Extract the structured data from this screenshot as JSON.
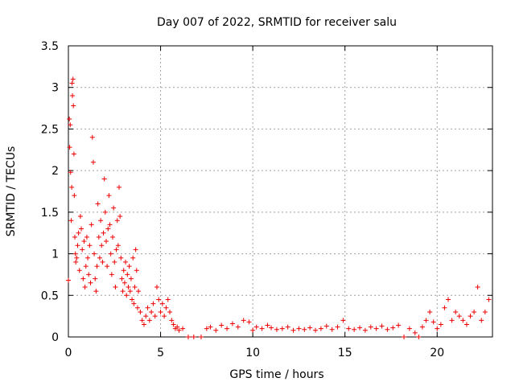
{
  "chart_data": {
    "type": "scatter",
    "title": "Day 007 of 2022, SRMTID for receiver salu",
    "xlabel": "GPS time / hours",
    "ylabel": "SRMTID / TECUs",
    "xlim": [
      0,
      23
    ],
    "ylim": [
      0,
      3.5
    ],
    "xticks": [
      0,
      5,
      10,
      15,
      20
    ],
    "xtick_labels": [
      "0",
      "5",
      "10",
      "15",
      "20"
    ],
    "yticks": [
      0,
      0.5,
      1,
      1.5,
      2,
      2.5,
      3,
      3.5
    ],
    "ytick_labels": [
      "0",
      "0.5",
      "1",
      "1.5",
      "2",
      "2.5",
      "3",
      "3.5"
    ],
    "grid": true,
    "marker": "+",
    "marker_color": "#ee0000",
    "series": [
      {
        "name": "SRMTID",
        "points": [
          [
            0.0,
            0.68
          ],
          [
            0.05,
            2.62
          ],
          [
            0.07,
            2.28
          ],
          [
            0.1,
            2.55
          ],
          [
            0.12,
            1.98
          ],
          [
            0.15,
            1.4
          ],
          [
            0.18,
            1.8
          ],
          [
            0.2,
            3.05
          ],
          [
            0.22,
            2.9
          ],
          [
            0.25,
            3.1
          ],
          [
            0.27,
            2.78
          ],
          [
            0.3,
            2.2
          ],
          [
            0.32,
            1.7
          ],
          [
            0.35,
            1.2
          ],
          [
            0.38,
            1.0
          ],
          [
            0.4,
            0.9
          ],
          [
            0.45,
            0.95
          ],
          [
            0.5,
            1.1
          ],
          [
            0.55,
            1.25
          ],
          [
            0.6,
            0.8
          ],
          [
            0.65,
            1.45
          ],
          [
            0.7,
            1.3
          ],
          [
            0.75,
            1.05
          ],
          [
            0.8,
            0.7
          ],
          [
            0.85,
            1.15
          ],
          [
            0.9,
            0.6
          ],
          [
            0.95,
            0.85
          ],
          [
            1.0,
            1.2
          ],
          [
            1.05,
            0.95
          ],
          [
            1.1,
            0.75
          ],
          [
            1.15,
            1.1
          ],
          [
            1.2,
            0.65
          ],
          [
            1.25,
            1.35
          ],
          [
            1.3,
            2.4
          ],
          [
            1.35,
            2.1
          ],
          [
            1.4,
            1.0
          ],
          [
            1.45,
            0.7
          ],
          [
            1.5,
            0.55
          ],
          [
            1.55,
            0.85
          ],
          [
            1.6,
            1.6
          ],
          [
            1.65,
            1.2
          ],
          [
            1.7,
            0.95
          ],
          [
            1.75,
            1.4
          ],
          [
            1.8,
            1.1
          ],
          [
            1.85,
            0.9
          ],
          [
            1.9,
            1.25
          ],
          [
            1.95,
            1.9
          ],
          [
            2.0,
            1.5
          ],
          [
            2.05,
            1.15
          ],
          [
            2.1,
            0.85
          ],
          [
            2.15,
            1.3
          ],
          [
            2.2,
            1.7
          ],
          [
            2.25,
            1.35
          ],
          [
            2.3,
            1.0
          ],
          [
            2.35,
            0.75
          ],
          [
            2.4,
            1.2
          ],
          [
            2.45,
            1.55
          ],
          [
            2.5,
            0.9
          ],
          [
            2.55,
            0.6
          ],
          [
            2.6,
            1.05
          ],
          [
            2.65,
            1.4
          ],
          [
            2.7,
            1.1
          ],
          [
            2.75,
            1.8
          ],
          [
            2.8,
            1.45
          ],
          [
            2.85,
            0.95
          ],
          [
            2.9,
            0.7
          ],
          [
            2.95,
            0.55
          ],
          [
            3.0,
            0.8
          ],
          [
            3.05,
            0.65
          ],
          [
            3.1,
            0.9
          ],
          [
            3.15,
            0.5
          ],
          [
            3.2,
            0.75
          ],
          [
            3.25,
            0.6
          ],
          [
            3.3,
            0.85
          ],
          [
            3.35,
            0.55
          ],
          [
            3.4,
            0.7
          ],
          [
            3.45,
            0.45
          ],
          [
            3.5,
            0.95
          ],
          [
            3.55,
            0.4
          ],
          [
            3.6,
            0.6
          ],
          [
            3.65,
            1.05
          ],
          [
            3.7,
            0.8
          ],
          [
            3.75,
            0.35
          ],
          [
            3.8,
            0.55
          ],
          [
            3.9,
            0.3
          ],
          [
            4.0,
            0.2
          ],
          [
            4.1,
            0.15
          ],
          [
            4.2,
            0.25
          ],
          [
            4.3,
            0.35
          ],
          [
            4.4,
            0.2
          ],
          [
            4.5,
            0.3
          ],
          [
            4.6,
            0.4
          ],
          [
            4.7,
            0.25
          ],
          [
            4.8,
            0.6
          ],
          [
            4.9,
            0.45
          ],
          [
            5.0,
            0.3
          ],
          [
            5.1,
            0.4
          ],
          [
            5.2,
            0.25
          ],
          [
            5.3,
            0.35
          ],
          [
            5.4,
            0.45
          ],
          [
            5.5,
            0.3
          ],
          [
            5.6,
            0.2
          ],
          [
            5.7,
            0.15
          ],
          [
            5.8,
            0.1
          ],
          [
            5.9,
            0.12
          ],
          [
            6.0,
            0.08
          ],
          [
            6.2,
            0.1
          ],
          [
            6.5,
            0.0
          ],
          [
            6.8,
            0.0
          ],
          [
            7.2,
            0.0
          ],
          [
            7.5,
            0.1
          ],
          [
            7.7,
            0.12
          ],
          [
            8.0,
            0.08
          ],
          [
            8.3,
            0.14
          ],
          [
            8.6,
            0.1
          ],
          [
            8.9,
            0.16
          ],
          [
            9.2,
            0.12
          ],
          [
            9.5,
            0.2
          ],
          [
            9.8,
            0.18
          ],
          [
            10.0,
            0.08
          ],
          [
            10.2,
            0.12
          ],
          [
            10.5,
            0.1
          ],
          [
            10.8,
            0.14
          ],
          [
            11.0,
            0.11
          ],
          [
            11.3,
            0.09
          ],
          [
            11.6,
            0.1
          ],
          [
            11.9,
            0.12
          ],
          [
            12.2,
            0.08
          ],
          [
            12.5,
            0.1
          ],
          [
            12.8,
            0.09
          ],
          [
            13.1,
            0.11
          ],
          [
            13.4,
            0.08
          ],
          [
            13.7,
            0.1
          ],
          [
            14.0,
            0.13
          ],
          [
            14.3,
            0.09
          ],
          [
            14.6,
            0.12
          ],
          [
            14.9,
            0.2
          ],
          [
            15.2,
            0.1
          ],
          [
            15.5,
            0.09
          ],
          [
            15.8,
            0.11
          ],
          [
            16.1,
            0.08
          ],
          [
            16.4,
            0.12
          ],
          [
            16.7,
            0.1
          ],
          [
            17.0,
            0.13
          ],
          [
            17.3,
            0.09
          ],
          [
            17.6,
            0.11
          ],
          [
            17.9,
            0.14
          ],
          [
            18.2,
            0.0
          ],
          [
            18.5,
            0.1
          ],
          [
            18.8,
            0.05
          ],
          [
            19.0,
            0.0
          ],
          [
            19.2,
            0.12
          ],
          [
            19.4,
            0.2
          ],
          [
            19.6,
            0.3
          ],
          [
            19.8,
            0.18
          ],
          [
            20.0,
            0.1
          ],
          [
            20.2,
            0.15
          ],
          [
            20.4,
            0.35
          ],
          [
            20.6,
            0.45
          ],
          [
            20.8,
            0.2
          ],
          [
            21.0,
            0.3
          ],
          [
            21.2,
            0.25
          ],
          [
            21.4,
            0.2
          ],
          [
            21.6,
            0.15
          ],
          [
            21.8,
            0.25
          ],
          [
            22.0,
            0.3
          ],
          [
            22.2,
            0.6
          ],
          [
            22.4,
            0.2
          ],
          [
            22.6,
            0.3
          ],
          [
            22.8,
            0.45
          ]
        ]
      }
    ]
  }
}
